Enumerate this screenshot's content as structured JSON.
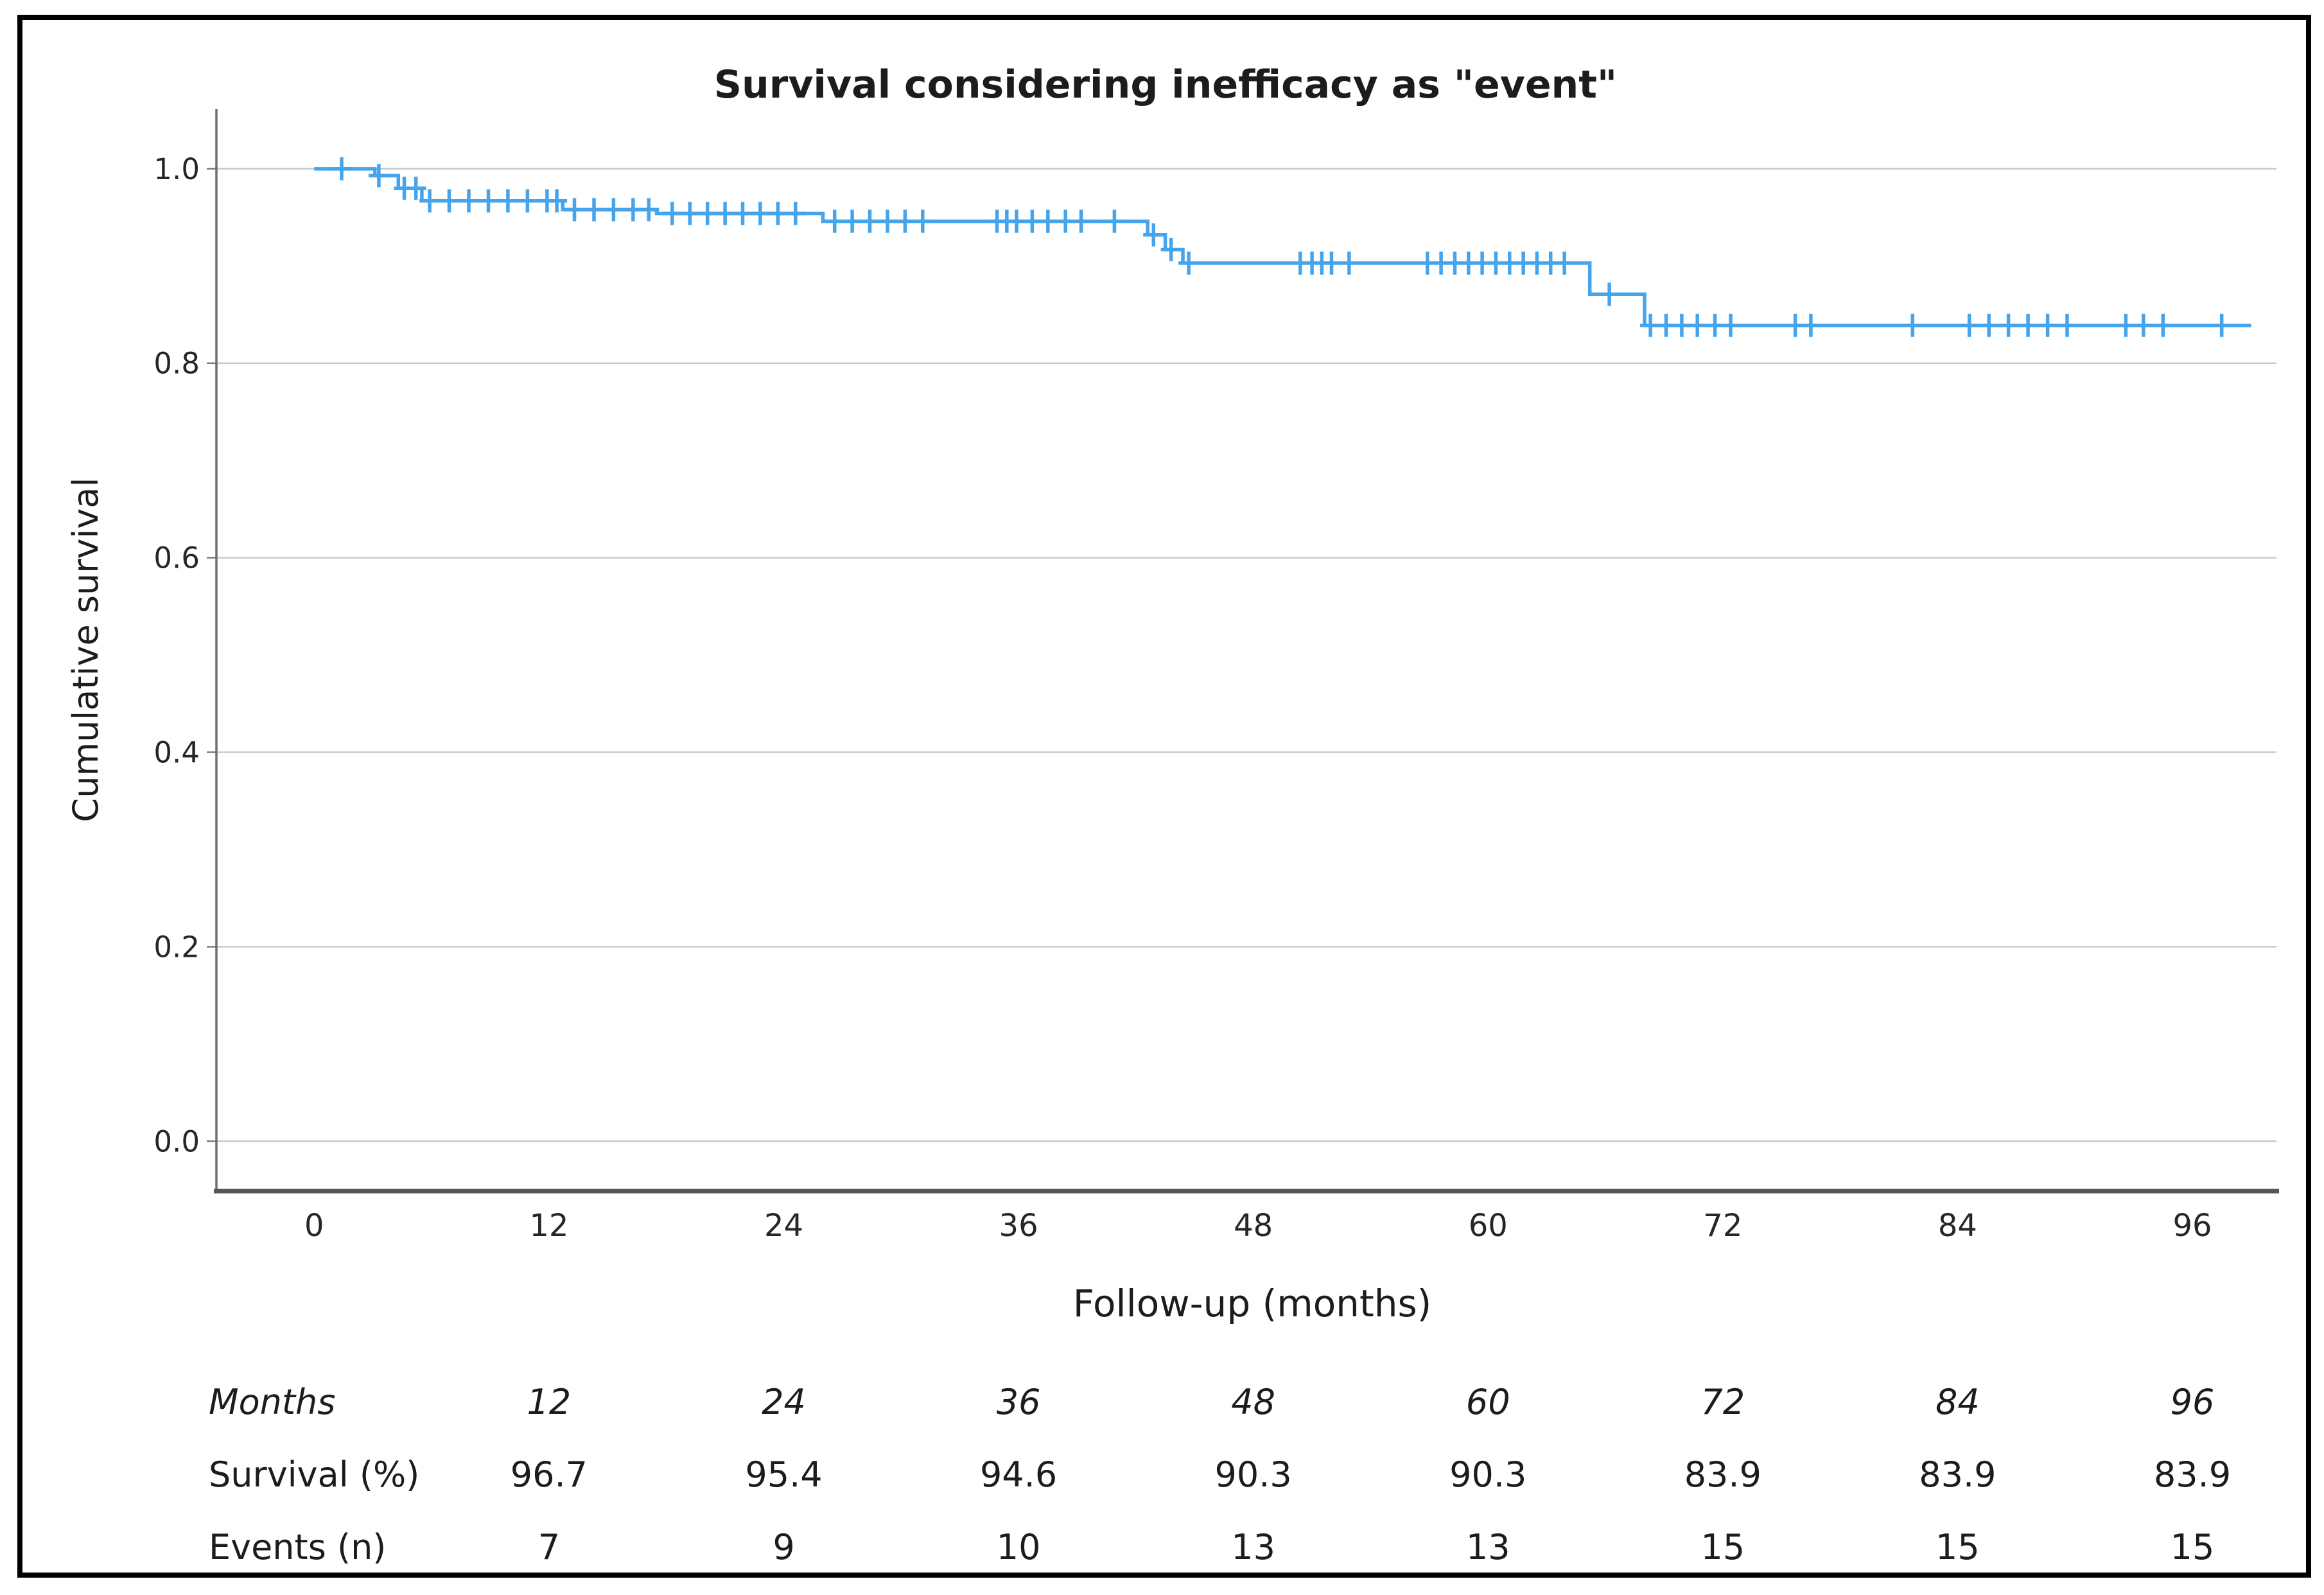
{
  "figure": {
    "border_color": "#000000",
    "background": "#ffffff"
  },
  "chart_data": {
    "type": "line",
    "subtype": "kaplan-meier-step",
    "title": "Survival considering inefficacy as \"event\"",
    "xlabel": "Follow-up (months)",
    "ylabel": "Cumulative survival",
    "xlim": [
      -5,
      100.3
    ],
    "ylim": [
      -0.05,
      1.06
    ],
    "x_ticks": [
      0,
      12,
      24,
      36,
      48,
      60,
      72,
      84,
      96
    ],
    "y_ticks": [
      "1.0",
      "0.8",
      "0.6",
      "0.4",
      "0.2",
      "0.0"
    ],
    "grid": "horizontal",
    "legend": "none",
    "line_color": "#45a4ec",
    "series": [
      {
        "name": "Cumulative survival",
        "steps": [
          [
            0.0,
            1.0
          ],
          [
            3.1,
            0.993
          ],
          [
            4.3,
            0.98
          ],
          [
            5.5,
            0.967
          ],
          [
            12.7,
            0.958
          ],
          [
            17.5,
            0.954
          ],
          [
            26.0,
            0.946
          ],
          [
            42.6,
            0.932
          ],
          [
            43.5,
            0.917
          ],
          [
            44.4,
            0.903
          ],
          [
            65.2,
            0.871
          ],
          [
            68.0,
            0.839
          ]
        ],
        "curve_end_month": 99.0,
        "censors": [
          [
            1.4,
            1.0
          ],
          [
            3.3,
            0.993
          ],
          [
            4.6,
            0.98
          ],
          [
            5.2,
            0.98
          ],
          [
            5.9,
            0.967
          ],
          [
            6.9,
            0.967
          ],
          [
            7.9,
            0.967
          ],
          [
            8.9,
            0.967
          ],
          [
            9.9,
            0.967
          ],
          [
            10.9,
            0.967
          ],
          [
            11.9,
            0.967
          ],
          [
            12.4,
            0.967
          ],
          [
            13.3,
            0.958
          ],
          [
            14.3,
            0.958
          ],
          [
            15.3,
            0.958
          ],
          [
            16.3,
            0.958
          ],
          [
            17.1,
            0.958
          ],
          [
            18.3,
            0.954
          ],
          [
            19.2,
            0.954
          ],
          [
            20.1,
            0.954
          ],
          [
            21.0,
            0.954
          ],
          [
            21.9,
            0.954
          ],
          [
            22.8,
            0.954
          ],
          [
            23.7,
            0.954
          ],
          [
            24.6,
            0.954
          ],
          [
            26.6,
            0.946
          ],
          [
            27.5,
            0.946
          ],
          [
            28.4,
            0.946
          ],
          [
            29.3,
            0.946
          ],
          [
            30.2,
            0.946
          ],
          [
            31.1,
            0.946
          ],
          [
            34.9,
            0.946
          ],
          [
            35.4,
            0.946
          ],
          [
            35.9,
            0.946
          ],
          [
            36.7,
            0.946
          ],
          [
            37.5,
            0.946
          ],
          [
            38.4,
            0.946
          ],
          [
            39.2,
            0.946
          ],
          [
            40.9,
            0.946
          ],
          [
            42.9,
            0.932
          ],
          [
            43.8,
            0.917
          ],
          [
            44.7,
            0.903
          ],
          [
            50.4,
            0.903
          ],
          [
            51.0,
            0.903
          ],
          [
            51.5,
            0.903
          ],
          [
            52.0,
            0.903
          ],
          [
            52.9,
            0.903
          ],
          [
            56.9,
            0.903
          ],
          [
            57.6,
            0.903
          ],
          [
            58.3,
            0.903
          ],
          [
            59.0,
            0.903
          ],
          [
            59.7,
            0.903
          ],
          [
            60.4,
            0.903
          ],
          [
            61.1,
            0.903
          ],
          [
            61.8,
            0.903
          ],
          [
            62.5,
            0.903
          ],
          [
            63.2,
            0.903
          ],
          [
            63.9,
            0.903
          ],
          [
            66.2,
            0.871
          ],
          [
            68.3,
            0.839
          ],
          [
            69.1,
            0.839
          ],
          [
            69.9,
            0.839
          ],
          [
            70.7,
            0.839
          ],
          [
            71.6,
            0.839
          ],
          [
            72.4,
            0.839
          ],
          [
            75.7,
            0.839
          ],
          [
            76.5,
            0.839
          ],
          [
            81.7,
            0.839
          ],
          [
            84.6,
            0.839
          ],
          [
            85.6,
            0.839
          ],
          [
            86.6,
            0.839
          ],
          [
            87.6,
            0.839
          ],
          [
            88.6,
            0.839
          ],
          [
            89.6,
            0.839
          ],
          [
            92.6,
            0.839
          ],
          [
            93.5,
            0.839
          ],
          [
            94.5,
            0.839
          ],
          [
            97.5,
            0.839
          ]
        ]
      }
    ]
  },
  "summary_table": {
    "rows": [
      {
        "label": "Months",
        "italic": true,
        "values": [
          "12",
          "24",
          "36",
          "48",
          "60",
          "72",
          "84",
          "96"
        ]
      },
      {
        "label": "Survival (%)",
        "italic": false,
        "values": [
          "96.7",
          "95.4",
          "94.6",
          "90.3",
          "90.3",
          "83.9",
          "83.9",
          "83.9"
        ]
      },
      {
        "label": "Events (n)",
        "italic": false,
        "values": [
          "7",
          "9",
          "10",
          "13",
          "13",
          "15",
          "15",
          "15"
        ]
      }
    ]
  }
}
